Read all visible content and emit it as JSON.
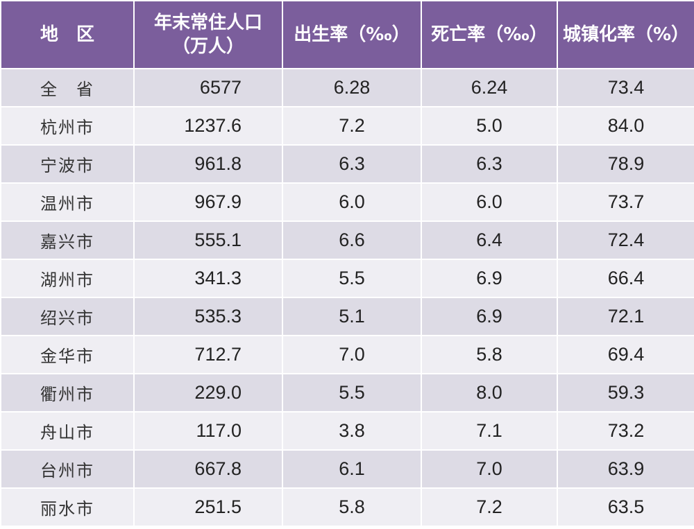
{
  "chart_data": {
    "type": "table",
    "columns": [
      {
        "label_lines": [
          "地　区"
        ]
      },
      {
        "label_lines": [
          "年末常住人口",
          "（万人）"
        ]
      },
      {
        "label_lines": [
          "出生率（‰）"
        ]
      },
      {
        "label_lines": [
          "死亡率（‰）"
        ]
      },
      {
        "label_lines": [
          "城镇化率（%）"
        ]
      }
    ],
    "rows": [
      {
        "region": "全　省",
        "population": "6577",
        "birth_rate": "6.28",
        "death_rate": "6.24",
        "urbanization": "73.4"
      },
      {
        "region": "杭州市",
        "population": "1237.6",
        "birth_rate": "7.2",
        "death_rate": "5.0",
        "urbanization": "84.0"
      },
      {
        "region": "宁波市",
        "population": "961.8",
        "birth_rate": "6.3",
        "death_rate": "6.3",
        "urbanization": "78.9"
      },
      {
        "region": "温州市",
        "population": "967.9",
        "birth_rate": "6.0",
        "death_rate": "6.0",
        "urbanization": "73.7"
      },
      {
        "region": "嘉兴市",
        "population": "555.1",
        "birth_rate": "6.6",
        "death_rate": "6.4",
        "urbanization": "72.4"
      },
      {
        "region": "湖州市",
        "population": "341.3",
        "birth_rate": "5.5",
        "death_rate": "6.9",
        "urbanization": "66.4"
      },
      {
        "region": "绍兴市",
        "population": "535.3",
        "birth_rate": "5.1",
        "death_rate": "6.9",
        "urbanization": "72.1"
      },
      {
        "region": "金华市",
        "population": "712.7",
        "birth_rate": "7.0",
        "death_rate": "5.8",
        "urbanization": "69.4"
      },
      {
        "region": "衢州市",
        "population": "229.0",
        "birth_rate": "5.5",
        "death_rate": "8.0",
        "urbanization": "59.3"
      },
      {
        "region": "舟山市",
        "population": "117.0",
        "birth_rate": "3.8",
        "death_rate": "7.1",
        "urbanization": "73.2"
      },
      {
        "region": "台州市",
        "population": "667.8",
        "birth_rate": "6.1",
        "death_rate": "7.0",
        "urbanization": "63.9"
      },
      {
        "region": "丽水市",
        "population": "251.5",
        "birth_rate": "5.8",
        "death_rate": "7.2",
        "urbanization": "63.5"
      }
    ]
  },
  "colors": {
    "header_bg": "#7b5e9c",
    "header_text": "#ffffff",
    "row_band_dark": "#dddbe5",
    "row_band_light": "#efeef3",
    "cell_text": "#222222"
  }
}
